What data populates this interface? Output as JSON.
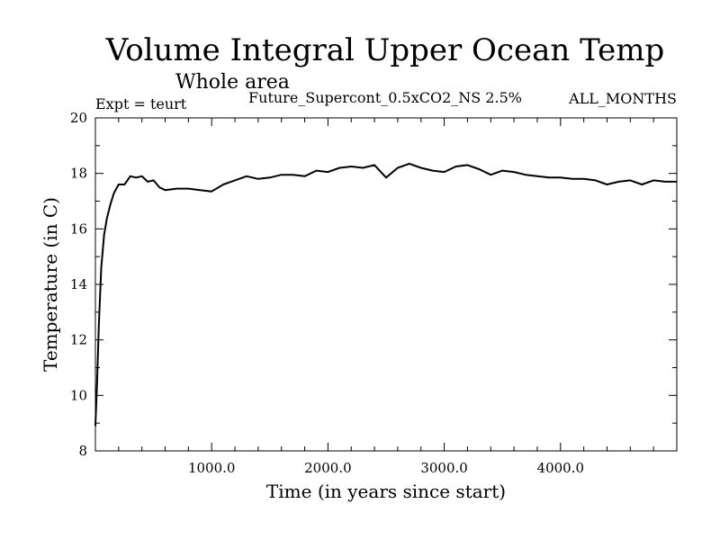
{
  "chart_data": {
    "type": "line",
    "title": "Volume Integral Upper Ocean Temp",
    "subtitle": "Whole area",
    "left_note": "Expt = teurt",
    "center_note": "Future_Supercont_0.5xCO2_NS 2.5%",
    "right_note": "ALL_MONTHS",
    "xlabel": "Time (in years since start)",
    "ylabel": "Temperature (in C)",
    "xlim": [
      0,
      5000
    ],
    "ylim": [
      8,
      20
    ],
    "x_ticks": [
      1000,
      2000,
      3000,
      4000
    ],
    "x_tick_labels": [
      "1000.0",
      "2000.0",
      "3000.0",
      "4000.0"
    ],
    "y_ticks": [
      8,
      10,
      12,
      14,
      16,
      18,
      20
    ],
    "y_tick_labels": [
      "8",
      "10",
      "12",
      "14",
      "16",
      "18",
      "20"
    ],
    "grid": false,
    "series": [
      {
        "color": "#000000",
        "x": [
          0,
          15,
          30,
          50,
          75,
          100,
          130,
          160,
          200,
          250,
          300,
          350,
          400,
          450,
          500,
          550,
          600,
          700,
          800,
          900,
          1000,
          1100,
          1200,
          1300,
          1400,
          1500,
          1600,
          1700,
          1800,
          1900,
          2000,
          2100,
          2200,
          2300,
          2400,
          2500,
          2600,
          2700,
          2800,
          2900,
          3000,
          3100,
          3200,
          3300,
          3400,
          3500,
          3600,
          3700,
          3800,
          3900,
          4000,
          4100,
          4200,
          4300,
          4400,
          4500,
          4600,
          4700,
          4800,
          4900,
          5000
        ],
        "values": [
          8.9,
          10.5,
          12.6,
          14.6,
          15.8,
          16.4,
          16.9,
          17.3,
          17.6,
          17.6,
          17.9,
          17.85,
          17.9,
          17.7,
          17.75,
          17.5,
          17.4,
          17.45,
          17.45,
          17.4,
          17.35,
          17.6,
          17.75,
          17.9,
          17.8,
          17.85,
          17.95,
          17.95,
          17.9,
          18.1,
          18.05,
          18.2,
          18.25,
          18.2,
          18.3,
          17.85,
          18.2,
          18.35,
          18.2,
          18.1,
          18.05,
          18.25,
          18.3,
          18.15,
          17.95,
          18.1,
          18.05,
          17.95,
          17.9,
          17.85,
          17.85,
          17.8,
          17.8,
          17.75,
          17.6,
          17.7,
          17.75,
          17.6,
          17.75,
          17.7,
          17.7
        ]
      }
    ]
  }
}
